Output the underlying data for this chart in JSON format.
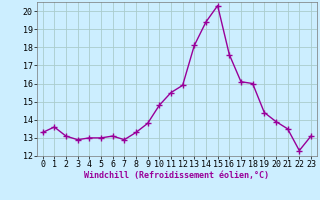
{
  "x": [
    0,
    1,
    2,
    3,
    4,
    5,
    6,
    7,
    8,
    9,
    10,
    11,
    12,
    13,
    14,
    15,
    16,
    17,
    18,
    19,
    20,
    21,
    22,
    23
  ],
  "y": [
    13.3,
    13.6,
    13.1,
    12.9,
    13.0,
    13.0,
    13.1,
    12.9,
    13.3,
    13.8,
    14.8,
    15.5,
    15.9,
    18.1,
    19.4,
    20.3,
    17.6,
    16.1,
    16.0,
    14.4,
    13.9,
    13.5,
    12.3,
    13.1
  ],
  "line_color": "#990099",
  "marker": "+",
  "marker_size": 4,
  "bg_color": "#cceeff",
  "grid_color": "#aacccc",
  "xlabel": "Windchill (Refroidissement éolien,°C)",
  "ylabel": "",
  "ylim": [
    12,
    20.5
  ],
  "xlim": [
    -0.5,
    23.5
  ],
  "yticks": [
    12,
    13,
    14,
    15,
    16,
    17,
    18,
    19,
    20
  ],
  "xticks": [
    0,
    1,
    2,
    3,
    4,
    5,
    6,
    7,
    8,
    9,
    10,
    11,
    12,
    13,
    14,
    15,
    16,
    17,
    18,
    19,
    20,
    21,
    22,
    23
  ],
  "axis_fontsize": 6,
  "tick_fontsize": 6,
  "linewidth": 1.0
}
